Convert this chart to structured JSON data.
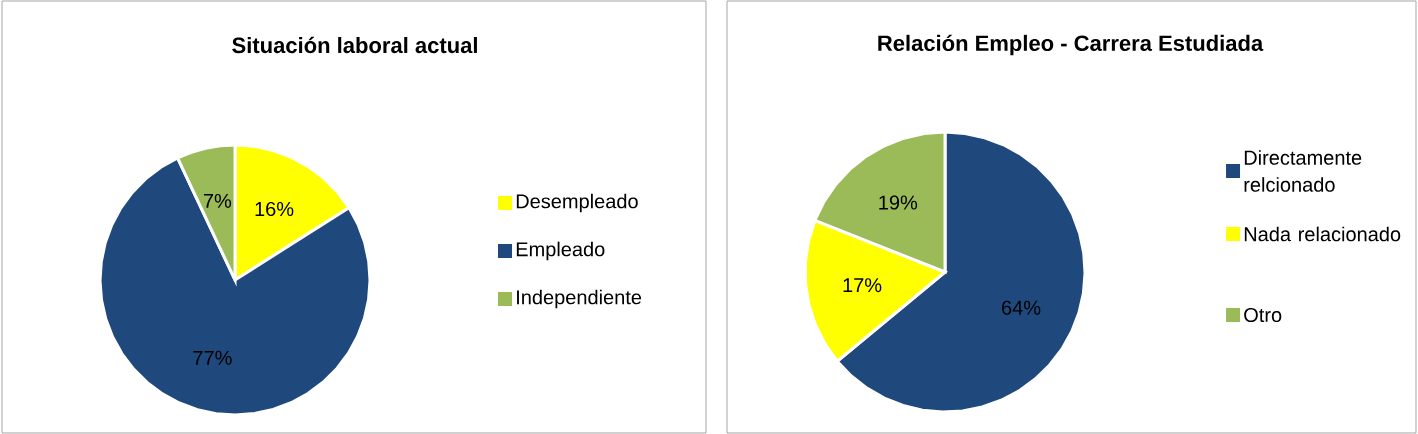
{
  "chart_data": [
    {
      "type": "pie",
      "title": "Situación laboral actual",
      "categories": [
        "Desempleado",
        "Empleado",
        "Independiente"
      ],
      "values": [
        16,
        77,
        7
      ],
      "colors": [
        "#ffff00",
        "#1f497d",
        "#9bbb59"
      ],
      "data_labels": true,
      "value_labels": [
        "16%",
        "77%",
        "7%"
      ],
      "legend": "right"
    },
    {
      "type": "pie",
      "title": "Relación Empleo - Carrera Estudiada",
      "categories": [
        "Directamente relcionado",
        "Nada relacionado",
        "Otro"
      ],
      "values": [
        64,
        17,
        19
      ],
      "colors": [
        "#1f497d",
        "#ffff00",
        "#9bbb59"
      ],
      "data_labels": true,
      "value_labels": [
        "64%",
        "17%",
        "19%"
      ],
      "legend": "right"
    }
  ]
}
